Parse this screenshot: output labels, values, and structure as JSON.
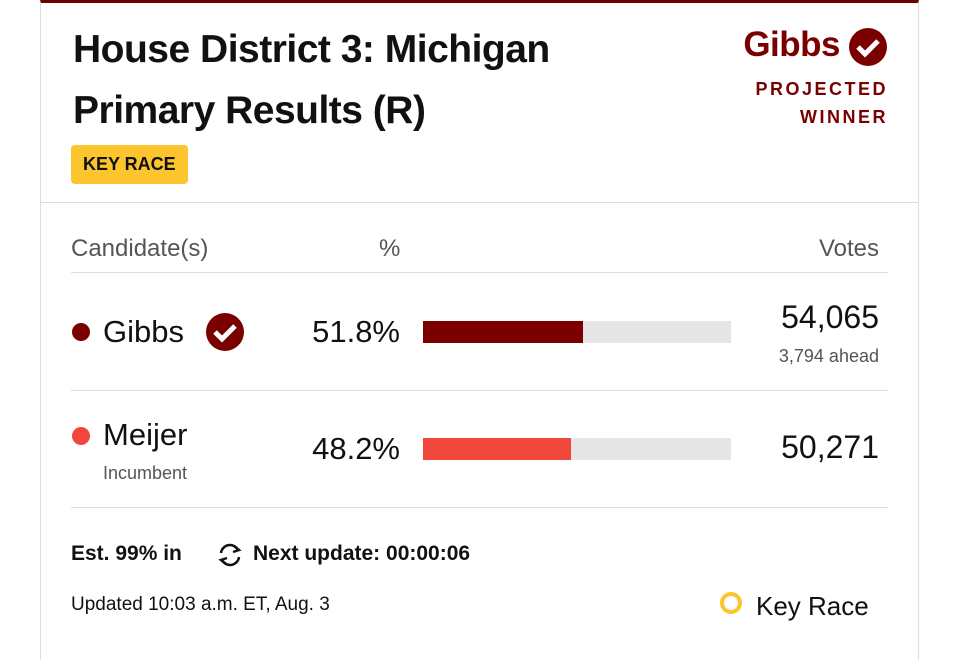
{
  "header": {
    "title_line1": "House District 3: Michigan",
    "title_line2": "Primary Results (R)",
    "badge": "KEY RACE",
    "winner": "Gibbs",
    "winner_label_1": "PROJECTED",
    "winner_label_2": "WINNER"
  },
  "table": {
    "columns": [
      "Candidate(s)",
      "%",
      "Votes"
    ],
    "rows": [
      {
        "name": "Gibbs",
        "color": "#7a0000",
        "percent": 51.8,
        "percent_label": "51.8%",
        "votes": "54,065",
        "note": "3,794 ahead"
      },
      {
        "name": "Meijer",
        "color": "#f0463c",
        "subtitle": "Incumbent",
        "percent": 48.2,
        "percent_label": "48.2%",
        "votes": "50,271"
      }
    ]
  },
  "footer": {
    "reporting": "Est. 99% in",
    "next_update": "Next update: 00:00:06",
    "updated": "Updated 10:03 a.m. ET, Aug. 3",
    "legend": "Key Race"
  }
}
